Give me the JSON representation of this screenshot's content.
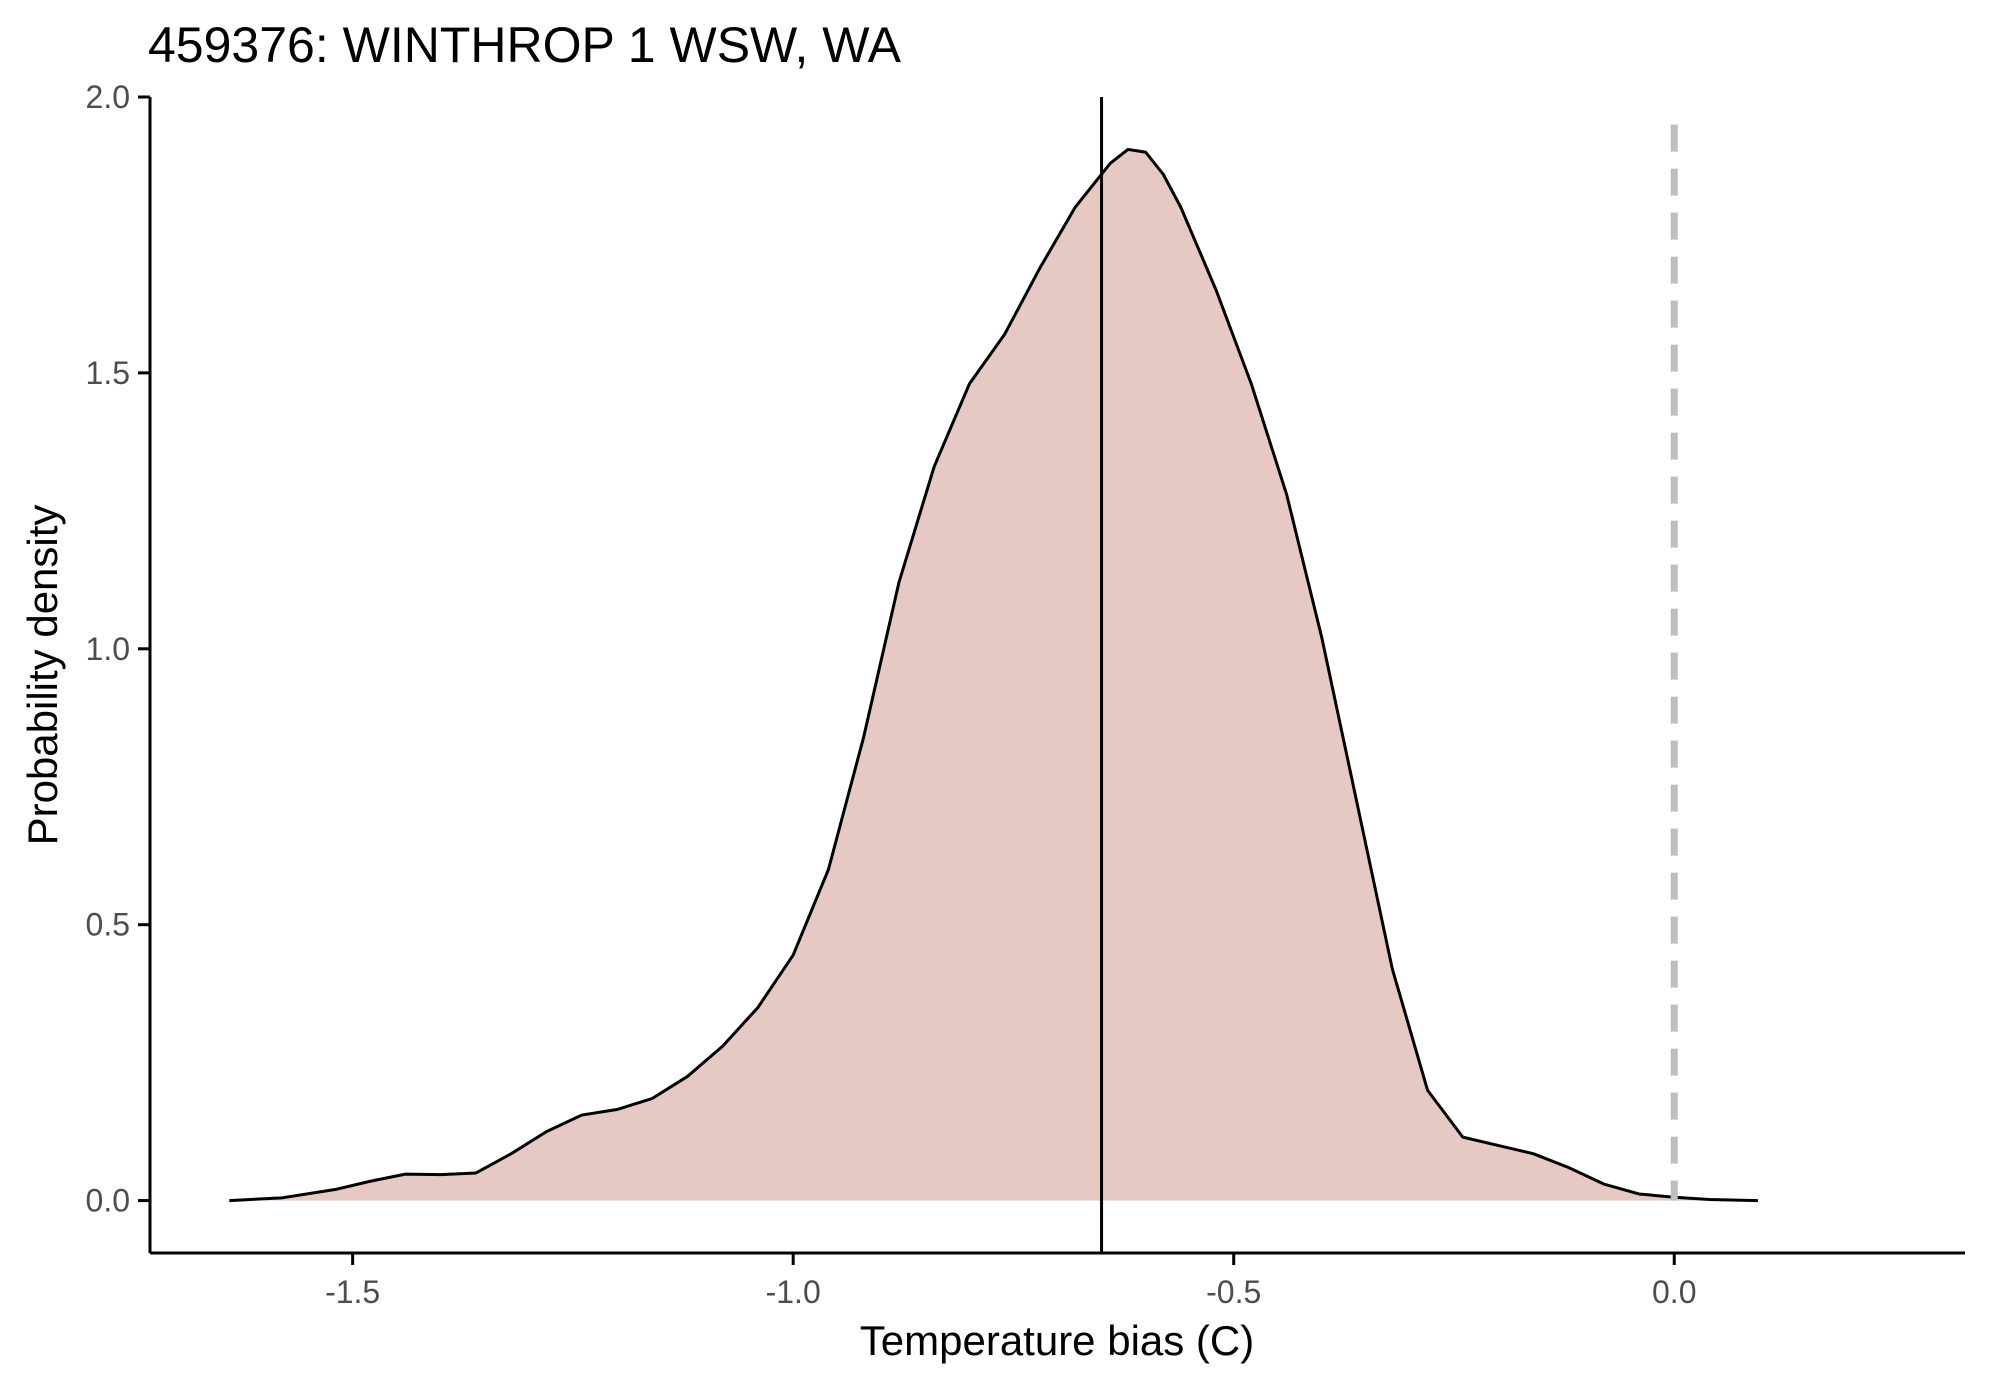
{
  "chart_data": {
    "type": "area",
    "title": "459376: WINTHROP 1 WSW, WA",
    "xlabel": "Temperature bias (C)",
    "ylabel": "Probability density",
    "xlim": [
      -1.73,
      0.33
    ],
    "ylim": [
      -0.095,
      2.0
    ],
    "x_ticks": [
      -1.5,
      -1.0,
      -0.5,
      0.0
    ],
    "x_tick_labels": [
      "-1.5",
      "-1.0",
      "-0.5",
      "0.0"
    ],
    "y_ticks": [
      0.0,
      0.5,
      1.0,
      1.5,
      2.0
    ],
    "y_tick_labels": [
      "0.0",
      "0.5",
      "1.0",
      "1.5",
      "2.0"
    ],
    "grid": false,
    "legend": "none",
    "series": [
      {
        "x": [
          -1.64,
          -1.58,
          -1.52,
          -1.48,
          -1.44,
          -1.4,
          -1.36,
          -1.32,
          -1.28,
          -1.24,
          -1.2,
          -1.16,
          -1.12,
          -1.08,
          -1.04,
          -1.0,
          -0.96,
          -0.92,
          -0.88,
          -0.84,
          -0.8,
          -0.76,
          -0.72,
          -0.68,
          -0.64,
          -0.62,
          -0.6,
          -0.58,
          -0.56,
          -0.52,
          -0.48,
          -0.44,
          -0.4,
          -0.36,
          -0.32,
          -0.28,
          -0.24,
          -0.2,
          -0.16,
          -0.12,
          -0.08,
          -0.04,
          0.0,
          0.04,
          0.095
        ],
        "y": [
          0.0,
          0.005,
          0.02,
          0.035,
          0.048,
          0.047,
          0.05,
          0.085,
          0.125,
          0.155,
          0.165,
          0.185,
          0.225,
          0.28,
          0.35,
          0.445,
          0.6,
          0.84,
          1.12,
          1.33,
          1.48,
          1.57,
          1.69,
          1.8,
          1.88,
          1.905,
          1.9,
          1.86,
          1.8,
          1.65,
          1.48,
          1.28,
          1.02,
          0.72,
          0.42,
          0.2,
          0.115,
          0.1,
          0.085,
          0.06,
          0.03,
          0.012,
          0.006,
          0.002,
          0.0
        ],
        "fill": "#e6c9c3",
        "line": "#000000"
      }
    ],
    "reference_lines": [
      {
        "orientation": "vertical",
        "x": -0.65,
        "style": "solid",
        "color": "#000000"
      },
      {
        "orientation": "vertical",
        "x": 0.0,
        "style": "dashed",
        "color": "#bebebe"
      }
    ]
  }
}
